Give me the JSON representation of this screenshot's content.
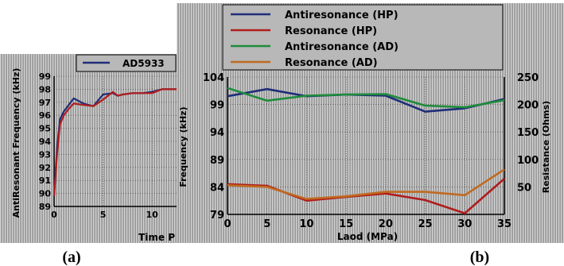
{
  "captions": {
    "a": "(a)",
    "b": "(b)"
  },
  "chart_data": [
    {
      "panel": "a",
      "type": "line",
      "ylabel": "AntiResonant Frequency (kHz)",
      "xlabel": "Time P",
      "legend": [
        "AD5933"
      ],
      "ylim": [
        89,
        99
      ],
      "xlim": [
        0,
        12.5
      ],
      "x_ticks": [
        "0",
        "5",
        "10"
      ],
      "y_ticks": [
        "89",
        "90",
        "91",
        "92",
        "93",
        "94",
        "95",
        "96",
        "97",
        "98",
        "99"
      ],
      "series": [
        {
          "name": "AD5933",
          "color": "#1f2d78",
          "x": [
            0,
            0.3,
            0.6,
            1.0,
            1.5,
            2.0,
            3.0,
            4.0,
            5.0,
            6.0,
            6.5,
            7.0,
            8.0,
            9.0,
            10.0,
            11.0,
            12.0,
            12.5
          ],
          "y": [
            89.8,
            93.5,
            95.7,
            96.3,
            96.8,
            97.3,
            96.9,
            96.7,
            97.6,
            97.7,
            97.5,
            97.6,
            97.7,
            97.7,
            97.8,
            98.0,
            98.0,
            98.0
          ]
        },
        {
          "name": "",
          "color": "#b01c1c",
          "x": [
            0,
            0.3,
            0.6,
            1.0,
            1.5,
            2.0,
            3.0,
            4.0,
            5.0,
            6.0,
            6.5,
            7.0,
            8.0,
            9.0,
            10.0,
            11.0,
            12.0,
            12.5
          ],
          "y": [
            89.8,
            93.0,
            95.3,
            96.0,
            96.5,
            96.9,
            96.8,
            96.7,
            97.2,
            97.8,
            97.5,
            97.6,
            97.7,
            97.7,
            97.7,
            98.0,
            98.0,
            98.0
          ]
        }
      ]
    },
    {
      "panel": "b",
      "type": "line",
      "xlabel": "Laod (MPa)",
      "ylabel": "Frequency (kHz)",
      "y2label": "Resistance (Ohms)",
      "xlim": [
        0,
        35
      ],
      "ylim": [
        79,
        104
      ],
      "x_ticks": [
        "0",
        "5",
        "10",
        "15",
        "20",
        "25",
        "30",
        "35"
      ],
      "y_ticks": [
        "79",
        "84",
        "89",
        "94",
        "99",
        "104"
      ],
      "y2_ticks": [
        "50",
        "100",
        "150",
        "200",
        "250"
      ],
      "series": [
        {
          "name": "Antiresonance (HP)",
          "color": "#1f2d78",
          "x": [
            0,
            5,
            10,
            15,
            20,
            25,
            30,
            35
          ],
          "y": [
            100.5,
            101.8,
            100.5,
            100.8,
            100.6,
            97.7,
            98.3,
            100.0
          ]
        },
        {
          "name": "Resonance (HP)",
          "color": "#b01c1c",
          "x": [
            0,
            5,
            10,
            15,
            20,
            25,
            30,
            35
          ],
          "y": [
            84.5,
            84.2,
            81.5,
            82.2,
            82.8,
            81.6,
            79.2,
            85.5
          ]
        },
        {
          "name": "Antiresonance (AD)",
          "color": "#1e8c3c",
          "x": [
            0,
            5,
            10,
            15,
            20,
            25,
            30,
            35
          ],
          "y": [
            102.0,
            99.7,
            100.6,
            100.8,
            100.9,
            98.8,
            98.5,
            99.8
          ]
        },
        {
          "name": "Resonance (AD)",
          "color": "#c06a20",
          "x": [
            0,
            5,
            10,
            15,
            20,
            25,
            30,
            35
          ],
          "y": [
            84.3,
            84.0,
            81.8,
            82.3,
            83.1,
            83.1,
            82.5,
            87.2
          ]
        }
      ]
    }
  ]
}
